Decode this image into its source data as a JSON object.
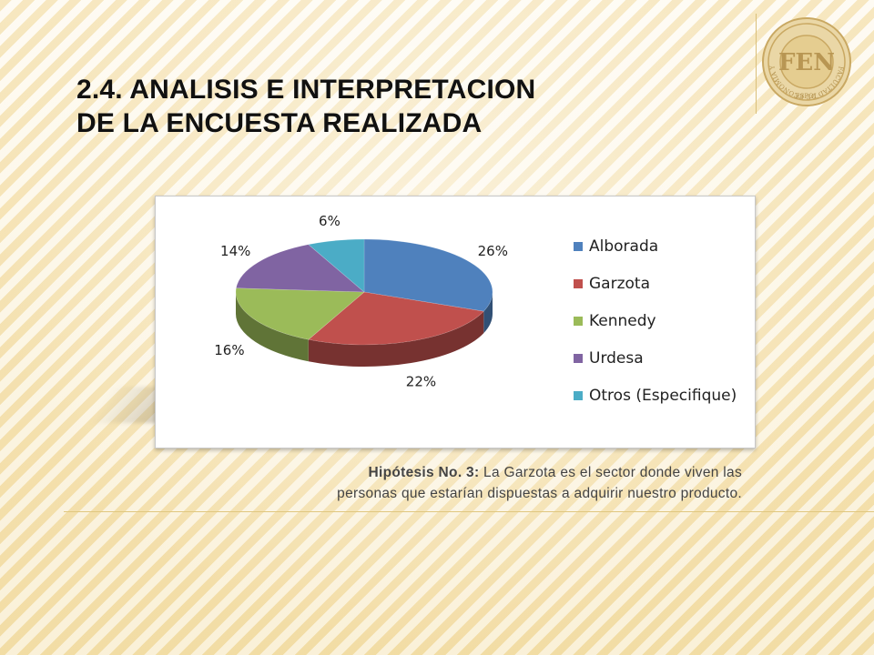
{
  "slide": {
    "title_line1": "2.4. ANALISIS E INTERPRETACION",
    "title_line2": "DE LA ENCUESTA REALIZADA",
    "caption_bold": "Hipótesis No. 3:",
    "caption_rest_line1": " La Garzota es el sector donde viven las",
    "caption_line2": "personas que estarían dispuestas a adquirir nuestro producto."
  },
  "logo": {
    "text": "FEN",
    "ring_text": "FACULTAD DE ECONOMIA Y NEGOCIOS",
    "bottom_text": "ESPOL"
  },
  "chart_data": {
    "type": "pie",
    "style": "3d",
    "categories": [
      "Alborada",
      "Garzota",
      "Kennedy",
      "Urdesa",
      "Otros (Especifique)"
    ],
    "values": [
      26,
      22,
      16,
      14,
      6
    ],
    "labels": [
      "26%",
      "22%",
      "16%",
      "14%",
      "6%"
    ],
    "colors": [
      "#4f81bd",
      "#c0504d",
      "#9bbb59",
      "#8064a2",
      "#4bacc6"
    ],
    "legend_position": "right"
  }
}
